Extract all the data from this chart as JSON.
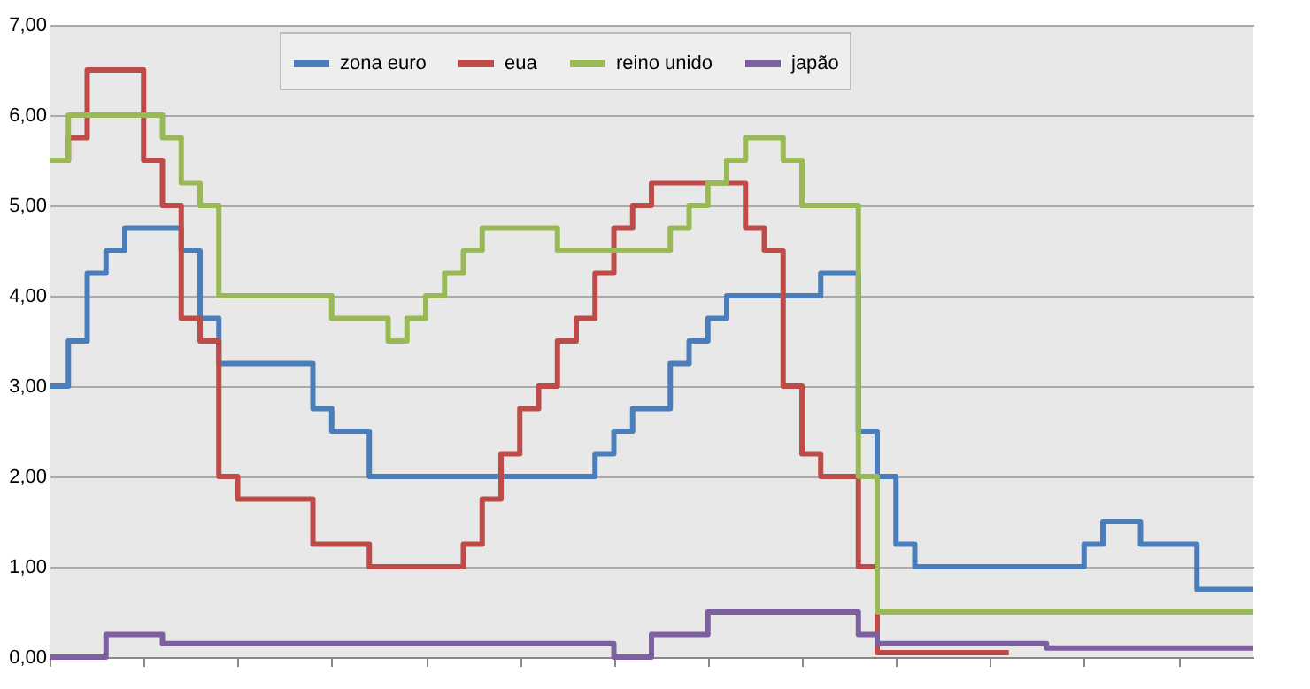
{
  "chart_data": {
    "type": "step",
    "categories": [
      null,
      null,
      null,
      null,
      null,
      null,
      null,
      null,
      null,
      null,
      null,
      null,
      null,
      null,
      null,
      null,
      null,
      null,
      null,
      null,
      null,
      null,
      null,
      null,
      null,
      null,
      null,
      null,
      null,
      null,
      null,
      null,
      null,
      null,
      null,
      null,
      null,
      null,
      null,
      null,
      null,
      null,
      null,
      null,
      null,
      null,
      null,
      null,
      null,
      null,
      null,
      null,
      null,
      null,
      null,
      null,
      null,
      null,
      null,
      null,
      null,
      null,
      null,
      null,
      null
    ],
    "series": [
      {
        "name": "zona euro",
        "color": "#4a7ebb",
        "values": [
          3.0,
          3.5,
          4.25,
          4.5,
          4.75,
          4.75,
          4.75,
          4.5,
          3.75,
          3.25,
          3.25,
          3.25,
          3.25,
          3.25,
          2.75,
          2.5,
          2.5,
          2.0,
          2.0,
          2.0,
          2.0,
          2.0,
          2.0,
          2.0,
          2.0,
          2.0,
          2.0,
          2.0,
          2.0,
          2.25,
          2.5,
          2.75,
          2.75,
          3.25,
          3.5,
          3.75,
          4.0,
          4.0,
          4.0,
          4.0,
          4.0,
          4.25,
          4.25,
          2.5,
          2.0,
          1.25,
          1.0,
          1.0,
          1.0,
          1.0,
          1.0,
          1.0,
          1.0,
          1.0,
          1.0,
          1.25,
          1.5,
          1.5,
          1.25,
          1.25,
          1.25,
          0.75,
          0.75,
          0.75,
          0.75
        ]
      },
      {
        "name": "eua",
        "color": "#be4b48",
        "values": [
          5.5,
          5.75,
          6.5,
          6.5,
          6.5,
          5.5,
          5.0,
          3.75,
          3.5,
          2.0,
          1.75,
          1.75,
          1.75,
          1.75,
          1.25,
          1.25,
          1.25,
          1.0,
          1.0,
          1.0,
          1.0,
          1.0,
          1.25,
          1.75,
          2.25,
          2.75,
          3.0,
          3.5,
          3.75,
          4.25,
          4.75,
          5.0,
          5.25,
          5.25,
          5.25,
          5.25,
          5.25,
          4.75,
          4.5,
          3.0,
          2.25,
          2.0,
          2.0,
          1.0,
          0.05,
          0.05,
          0.05,
          0.05,
          0.05,
          0.05,
          0.05,
          0.05,
          null,
          null,
          null,
          null,
          null,
          null,
          null,
          null,
          null,
          null,
          null,
          null,
          null
        ]
      },
      {
        "name": "reino unido",
        "color": "#98b954",
        "values": [
          5.5,
          6.0,
          6.0,
          6.0,
          6.0,
          6.0,
          5.75,
          5.25,
          5.0,
          4.0,
          4.0,
          4.0,
          4.0,
          4.0,
          4.0,
          3.75,
          3.75,
          3.75,
          3.5,
          3.75,
          4.0,
          4.25,
          4.5,
          4.75,
          4.75,
          4.75,
          4.75,
          4.5,
          4.5,
          4.5,
          4.5,
          4.5,
          4.5,
          4.75,
          5.0,
          5.25,
          5.5,
          5.75,
          5.75,
          5.5,
          5.0,
          5.0,
          5.0,
          2.0,
          0.5,
          0.5,
          0.5,
          0.5,
          0.5,
          0.5,
          0.5,
          0.5,
          0.5,
          0.5,
          0.5,
          0.5,
          0.5,
          0.5,
          0.5,
          0.5,
          0.5,
          0.5,
          0.5,
          0.5,
          0.5
        ]
      },
      {
        "name": "japão",
        "color": "#7d60a0",
        "values": [
          0,
          0,
          0,
          0.25,
          0.25,
          0.25,
          0.15,
          0.15,
          0.15,
          0.15,
          0.15,
          0.15,
          0.15,
          0.15,
          0.15,
          0.15,
          0.15,
          0.15,
          0.15,
          0.15,
          0.15,
          0.15,
          0.15,
          0.15,
          0.15,
          0.15,
          0.15,
          0.15,
          0.15,
          0.15,
          0,
          0,
          0.25,
          0.25,
          0.25,
          0.5,
          0.5,
          0.5,
          0.5,
          0.5,
          0.5,
          0.5,
          0.5,
          0.25,
          0.15,
          0.15,
          0.15,
          0.15,
          0.15,
          0.15,
          0.15,
          0.15,
          0.15,
          0.1,
          0.1,
          0.1,
          0.1,
          0.1,
          0.1,
          0.1,
          0.1,
          0.1,
          0.1,
          0.1,
          0.1
        ]
      }
    ],
    "ylim": [
      0,
      7
    ],
    "yticks": [
      {
        "value": 0,
        "label": "0,00"
      },
      {
        "value": 1,
        "label": "1,00"
      },
      {
        "value": 2,
        "label": "2,00"
      },
      {
        "value": 3,
        "label": "3,00"
      },
      {
        "value": 4,
        "label": "4,00"
      },
      {
        "value": 5,
        "label": "5,00"
      },
      {
        "value": 6,
        "label": "6,00"
      },
      {
        "value": 7,
        "label": "7,00"
      }
    ],
    "grid": "y",
    "legend": "top",
    "tick_labels": "y",
    "line_style": "solid"
  }
}
